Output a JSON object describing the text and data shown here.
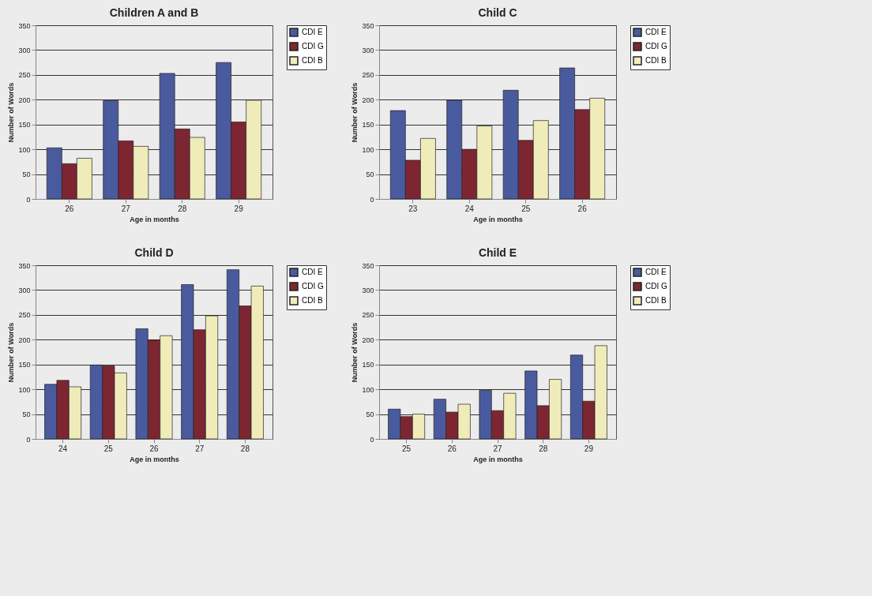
{
  "chart_data": [
    {
      "type": "bar",
      "title": "Children A and B",
      "xlabel": "Age in months",
      "ylabel": "Number of Words",
      "categories": [
        "26",
        "27",
        "28",
        "29"
      ],
      "ylim": [
        0,
        350
      ],
      "yticks": [
        0,
        50,
        100,
        150,
        200,
        250,
        300,
        350
      ],
      "grid": "y",
      "legend": "right",
      "series": [
        {
          "name": "CDI E",
          "color": "#4a5a9e",
          "values": [
            103,
            198,
            253,
            275
          ]
        },
        {
          "name": "CDI G",
          "color": "#7d2632",
          "values": [
            71,
            117,
            141,
            155
          ]
        },
        {
          "name": "CDI B",
          "color": "#f0ecba",
          "values": [
            82,
            106,
            124,
            199
          ]
        }
      ]
    },
    {
      "type": "bar",
      "title": "Child C",
      "xlabel": "Age in months",
      "ylabel": "Number of Words",
      "categories": [
        "23",
        "24",
        "25",
        "26"
      ],
      "ylim": [
        0,
        350
      ],
      "yticks": [
        0,
        50,
        100,
        150,
        200,
        250,
        300,
        350
      ],
      "grid": "y",
      "legend": "right",
      "series": [
        {
          "name": "CDI E",
          "color": "#4a5a9e",
          "values": [
            178,
            199,
            219,
            264
          ]
        },
        {
          "name": "CDI G",
          "color": "#7d2632",
          "values": [
            78,
            100,
            118,
            180
          ]
        },
        {
          "name": "CDI B",
          "color": "#f0ecba",
          "values": [
            122,
            147,
            158,
            203
          ]
        }
      ]
    },
    {
      "type": "bar",
      "title": "Child D",
      "xlabel": "Age in months",
      "ylabel": "Number of Words",
      "categories": [
        "24",
        "25",
        "26",
        "27",
        "28"
      ],
      "ylim": [
        0,
        350
      ],
      "yticks": [
        0,
        50,
        100,
        150,
        200,
        250,
        300,
        350
      ],
      "grid": "y",
      "legend": "right",
      "series": [
        {
          "name": "CDI E",
          "color": "#4a5a9e",
          "values": [
            110,
            149,
            222,
            311,
            341
          ]
        },
        {
          "name": "CDI G",
          "color": "#7d2632",
          "values": [
            118,
            147,
            199,
            220,
            268
          ]
        },
        {
          "name": "CDI B",
          "color": "#f0ecba",
          "values": [
            105,
            133,
            208,
            248,
            308
          ]
        }
      ]
    },
    {
      "type": "bar",
      "title": "Child E",
      "xlabel": "Age in months",
      "ylabel": "Number of Words",
      "categories": [
        "25",
        "26",
        "27",
        "28",
        "29"
      ],
      "ylim": [
        0,
        350
      ],
      "yticks": [
        0,
        50,
        100,
        150,
        200,
        250,
        300,
        350
      ],
      "grid": "y",
      "legend": "right",
      "series": [
        {
          "name": "CDI E",
          "color": "#4a5a9e",
          "values": [
            60,
            80,
            98,
            137,
            169
          ]
        },
        {
          "name": "CDI G",
          "color": "#7d2632",
          "values": [
            45,
            54,
            57,
            67,
            76
          ]
        },
        {
          "name": "CDI B",
          "color": "#f0ecba",
          "values": [
            50,
            70,
            92,
            120,
            188
          ]
        }
      ]
    }
  ]
}
